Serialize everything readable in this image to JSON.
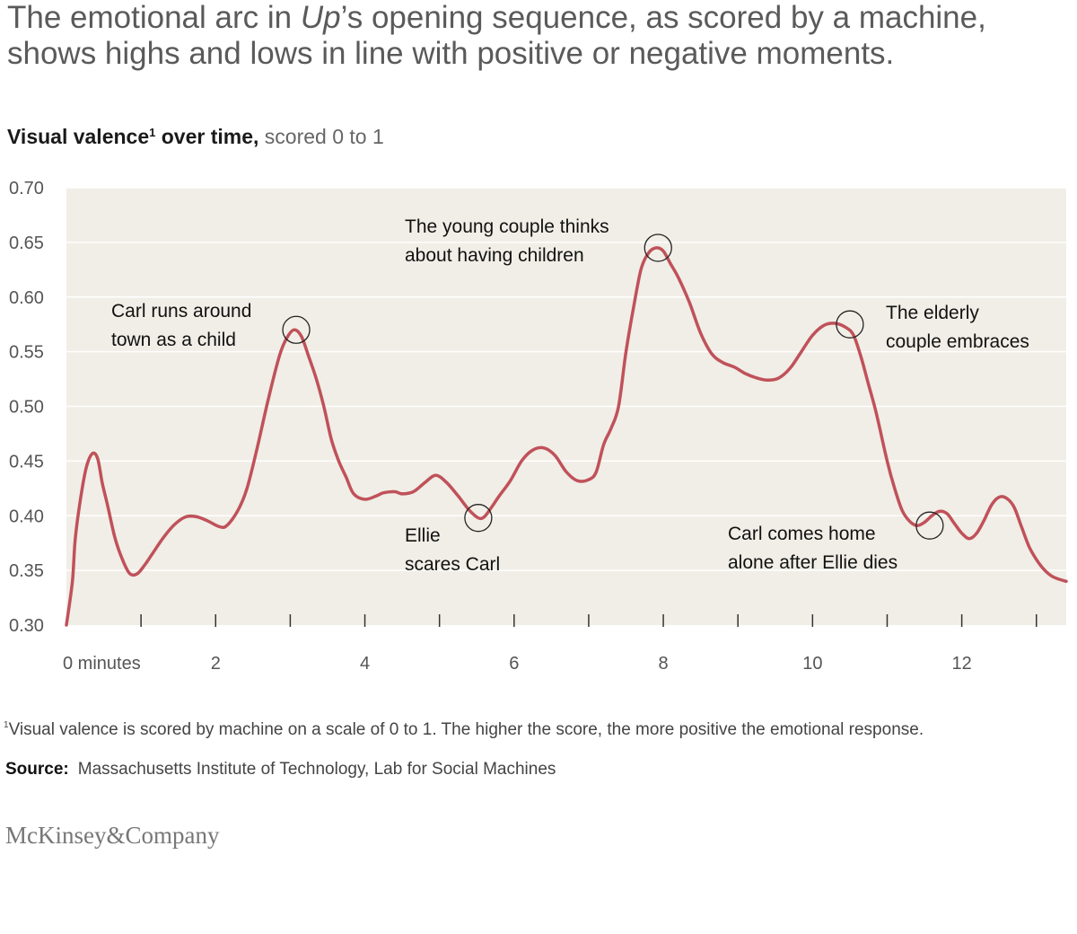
{
  "headline": {
    "pre": "The emotional arc in ",
    "film": "Up",
    "post": "’s opening sequence, as scored by a machine, shows highs and lows in line with positive or negative moments."
  },
  "subtitle": {
    "bold": "Visual valence",
    "sup": "1",
    "bold2": " over time,",
    "rest": " scored 0 to 1"
  },
  "chart_data": {
    "type": "line",
    "title": "Visual valence over time, scored 0 to 1",
    "xlabel": "minutes",
    "ylabel": "Visual valence",
    "xlim": [
      0,
      13.4
    ],
    "ylim": [
      0.3,
      0.7
    ],
    "y_ticks": [
      "0.70",
      "0.65",
      "0.60",
      "0.55",
      "0.50",
      "0.45",
      "0.40",
      "0.35",
      "0.30"
    ],
    "x_tick_labels": [
      {
        "x": 0,
        "label": "0 minutes"
      },
      {
        "x": 2,
        "label": "2"
      },
      {
        "x": 4,
        "label": "4"
      },
      {
        "x": 6,
        "label": "6"
      },
      {
        "x": 8,
        "label": "8"
      },
      {
        "x": 10,
        "label": "10"
      },
      {
        "x": 12,
        "label": "12"
      }
    ],
    "x_minor_ticks": [
      1,
      2,
      3,
      4,
      5,
      6,
      7,
      8,
      9,
      10,
      11,
      12,
      13
    ],
    "line_color": "#c0515a",
    "plot_bg": "#f0eee6",
    "grid": true,
    "series": [
      {
        "name": "Visual valence",
        "x": [
          0,
          0.08,
          0.12,
          0.2,
          0.27,
          0.35,
          0.42,
          0.48,
          0.55,
          0.65,
          0.75,
          0.85,
          0.95,
          1.05,
          1.15,
          1.3,
          1.45,
          1.6,
          1.75,
          1.9,
          2.05,
          2.15,
          2.3,
          2.42,
          2.55,
          2.7,
          2.85,
          2.95,
          3.05,
          3.15,
          3.25,
          3.35,
          3.45,
          3.55,
          3.65,
          3.75,
          3.85,
          4.0,
          4.15,
          4.25,
          4.4,
          4.5,
          4.65,
          4.8,
          4.95,
          5.1,
          5.25,
          5.4,
          5.52,
          5.6,
          5.7,
          5.8,
          5.95,
          6.1,
          6.25,
          6.4,
          6.55,
          6.7,
          6.85,
          7.0,
          7.1,
          7.2,
          7.3,
          7.4,
          7.5,
          7.6,
          7.7,
          7.8,
          7.9,
          8.0,
          8.1,
          8.2,
          8.35,
          8.5,
          8.65,
          8.8,
          8.95,
          9.1,
          9.25,
          9.4,
          9.55,
          9.7,
          9.85,
          10.0,
          10.15,
          10.3,
          10.45,
          10.55,
          10.65,
          10.75,
          10.85,
          11.0,
          11.1,
          11.2,
          11.3,
          11.4,
          11.5,
          11.6,
          11.7,
          11.8,
          11.9,
          12.0,
          12.1,
          12.2,
          12.3,
          12.4,
          12.5,
          12.6,
          12.7,
          12.8,
          12.9,
          13.0,
          13.1,
          13.2,
          13.3,
          13.4
        ],
        "values": [
          0.3,
          0.34,
          0.38,
          0.42,
          0.445,
          0.457,
          0.452,
          0.43,
          0.41,
          0.38,
          0.36,
          0.347,
          0.347,
          0.355,
          0.365,
          0.38,
          0.392,
          0.399,
          0.399,
          0.395,
          0.39,
          0.391,
          0.405,
          0.425,
          0.46,
          0.505,
          0.545,
          0.562,
          0.57,
          0.564,
          0.545,
          0.525,
          0.5,
          0.47,
          0.45,
          0.435,
          0.42,
          0.415,
          0.418,
          0.421,
          0.422,
          0.42,
          0.422,
          0.43,
          0.437,
          0.43,
          0.418,
          0.405,
          0.398,
          0.399,
          0.408,
          0.418,
          0.432,
          0.45,
          0.46,
          0.462,
          0.455,
          0.44,
          0.432,
          0.433,
          0.44,
          0.465,
          0.48,
          0.5,
          0.55,
          0.59,
          0.625,
          0.64,
          0.645,
          0.642,
          0.63,
          0.618,
          0.595,
          0.567,
          0.548,
          0.54,
          0.536,
          0.53,
          0.526,
          0.524,
          0.526,
          0.535,
          0.55,
          0.565,
          0.574,
          0.576,
          0.572,
          0.565,
          0.545,
          0.52,
          0.495,
          0.45,
          0.425,
          0.405,
          0.395,
          0.391,
          0.394,
          0.4,
          0.404,
          0.402,
          0.393,
          0.384,
          0.379,
          0.384,
          0.396,
          0.41,
          0.417,
          0.416,
          0.408,
          0.39,
          0.372,
          0.36,
          0.351,
          0.345,
          0.342,
          0.34
        ]
      }
    ],
    "annotations": [
      {
        "x": 3.08,
        "y": 0.57,
        "lines": [
          "Carl runs around",
          "town as a child"
        ]
      },
      {
        "x": 5.52,
        "y": 0.398,
        "lines": [
          "Ellie",
          "scares Carl"
        ]
      },
      {
        "x": 7.93,
        "y": 0.645,
        "lines": [
          "The young couple thinks",
          "about having children"
        ]
      },
      {
        "x": 10.5,
        "y": 0.575,
        "lines": [
          "The elderly",
          "couple embraces"
        ]
      },
      {
        "x": 11.57,
        "y": 0.391,
        "lines": [
          "Carl comes home",
          "alone after Ellie dies"
        ]
      }
    ]
  },
  "footnote": {
    "sup": "1",
    "text": "Visual valence is scored by machine on a scale of 0 to 1. The higher the score, the more positive the emotional response."
  },
  "source": {
    "label": "Source:",
    "text": "Massachusetts Institute of Technology, Lab for Social Machines"
  },
  "logo": "McKinsey&Company"
}
